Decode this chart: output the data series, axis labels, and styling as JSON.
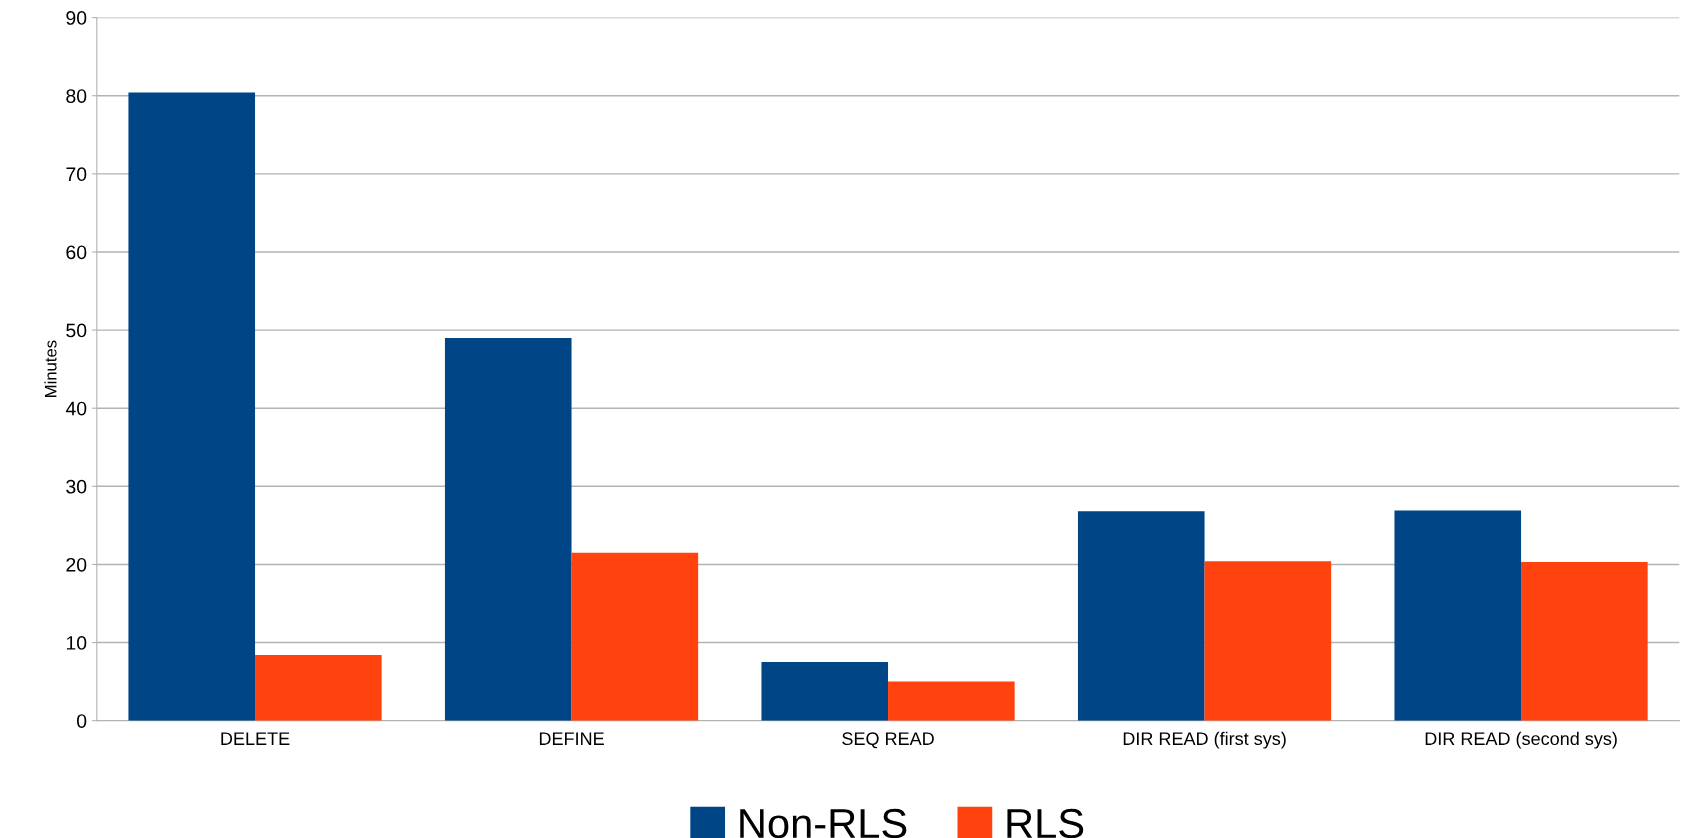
{
  "chart_data": {
    "type": "bar",
    "ylabel": "Minutes",
    "categories": [
      "DELETE",
      "DEFINE",
      "SEQ READ",
      "DIR READ (first sys)",
      "DIR READ (second sys)"
    ],
    "series": [
      {
        "name": "Non-RLS",
        "color": "#004586",
        "values": [
          80.4,
          49.0,
          7.5,
          26.8,
          26.9
        ]
      },
      {
        "name": "RLS",
        "color": "#ff420e",
        "values": [
          8.4,
          21.5,
          5.0,
          20.4,
          20.3
        ]
      }
    ],
    "ylim": [
      0,
      90
    ],
    "yticks": [
      0,
      10,
      20,
      30,
      40,
      50,
      60,
      70,
      80,
      90
    ],
    "grid": "y",
    "legend": "bottom"
  }
}
